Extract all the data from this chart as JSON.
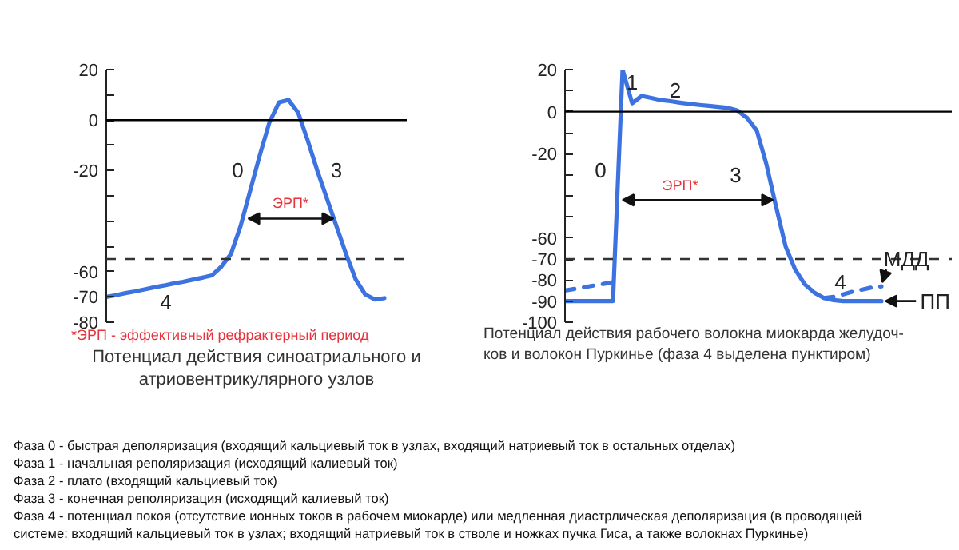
{
  "chart_data": [
    {
      "type": "line",
      "title": "Потенциал действия синоатриального и\nатриовентрикулярного узлов",
      "categories": [
        null,
        null,
        null,
        null,
        null,
        null,
        null,
        null,
        null,
        null,
        null,
        null,
        null,
        null,
        null,
        null,
        null,
        null,
        null,
        null,
        null,
        null,
        null,
        null,
        null,
        null,
        null,
        null,
        null,
        null
      ],
      "series": [
        {
          "color": "#3d73e0",
          "values": [
            -70,
            -69.3,
            -68.5,
            -67.8,
            -67,
            -66.2,
            -65.5,
            -64.7,
            -64,
            -63.2,
            -62.4,
            -61.5,
            -58,
            -53,
            -42,
            -28,
            -14,
            -1,
            7,
            8,
            3,
            -8,
            -20,
            -31,
            -42,
            -53,
            -63,
            -69,
            -71,
            -70.5
          ]
        }
      ],
      "ylim": [
        -80,
        20
      ],
      "yticks": [
        20,
        {
          "value": 10,
          "label": null
        },
        0,
        {
          "value": -10,
          "label": null
        },
        -20,
        {
          "value": -30,
          "label": null
        },
        {
          "value": -40,
          "label": null
        },
        {
          "value": -50,
          "label": null
        },
        -60,
        -70,
        -80
      ],
      "tick_labels": "y",
      "ref_lines": [
        {
          "axis": "y",
          "value": 0,
          "color": "#000000",
          "line_style": "solid"
        },
        {
          "axis": "y",
          "value": -55,
          "color": "#333333",
          "line_style": "dashed"
        }
      ],
      "annotations": [
        "0",
        "3",
        "4",
        "ЭРП*",
        "*ЭРП - эффективный рефрактерный период"
      ]
    },
    {
      "type": "line",
      "title": "Потенциал действия рабочего волокна миокарда желудоч-\nков и волокон Пуркинье (фаза 4 выделена пунктиром)",
      "categories": [
        null,
        null,
        null,
        null,
        null,
        null,
        null,
        null,
        null,
        null,
        null,
        null,
        null,
        null,
        null,
        null,
        null,
        null,
        null,
        null,
        null,
        null,
        null,
        null,
        null,
        null,
        null,
        null,
        null,
        null,
        null,
        null,
        null,
        null
      ],
      "series": [
        {
          "color": "#3d73e0",
          "line_style": "solid",
          "values": [
            -90,
            -90,
            -90,
            -90,
            -90,
            -90,
            20,
            4,
            7.5,
            6.5,
            5.5,
            5,
            4.3,
            3.7,
            3.2,
            2.8,
            2.3,
            1.8,
            0.5,
            -3,
            -9,
            -25,
            -45,
            -64,
            -75,
            -82,
            -86,
            -88.5,
            -89.5,
            -90,
            -90,
            -90,
            -90,
            -90
          ]
        },
        {
          "color": "#3d73e0",
          "line_style": "dashed",
          "values": [
            -85,
            -84.2,
            -83.4,
            -82.6,
            -81.8,
            -81,
            null,
            null,
            null,
            null,
            null,
            null,
            null,
            null,
            null,
            null,
            null,
            null,
            null,
            null,
            null,
            null,
            null,
            null,
            null,
            null,
            null,
            -88.5,
            -88,
            -86.8,
            -85.5,
            -84.5,
            -83.5,
            -83
          ]
        }
      ],
      "ylim": [
        -100,
        20
      ],
      "yticks": [
        20,
        {
          "value": 10,
          "label": null
        },
        0,
        {
          "value": -10,
          "label": null
        },
        -20,
        {
          "value": -30,
          "label": null
        },
        {
          "value": -40,
          "label": null
        },
        {
          "value": -50,
          "label": null
        },
        -60,
        -70,
        -80,
        -90,
        -100
      ],
      "tick_labels": "y",
      "ref_lines": [
        {
          "axis": "y",
          "value": 0,
          "color": "#000000",
          "line_style": "solid"
        },
        {
          "axis": "y",
          "value": -70,
          "color": "#333333",
          "line_style": "dashed"
        }
      ],
      "annotations": [
        "0",
        "1",
        "2",
        "3",
        "4",
        "ЭРП*",
        "МДД",
        "ПП"
      ]
    },
    {
      "type": "other",
      "annotations": [
        "Фаза 0 - быстрая деполяризация (входящий кальциевый ток в узлах, входящий натриевый ток в остальных отделах)",
        "Фаза 1 - начальная реполяризация (исходящий калиевый ток)",
        "Фаза 2 - плато (входящий кальциевый ток)",
        "Фаза 3 - конечная реполяризация (исходящий калиевый ток)",
        "Фаза 4 - потенциал покоя (отсутствие ионных токов в рабочем миокарде) или медленная диастрлическая деполяризация (в проводящей\nсистеме: входящий кальциевый ток в узлах; входящий натриевый ток в стволе и ножках пучка Гиса, а также волокнах Пуркинье)"
      ]
    }
  ]
}
